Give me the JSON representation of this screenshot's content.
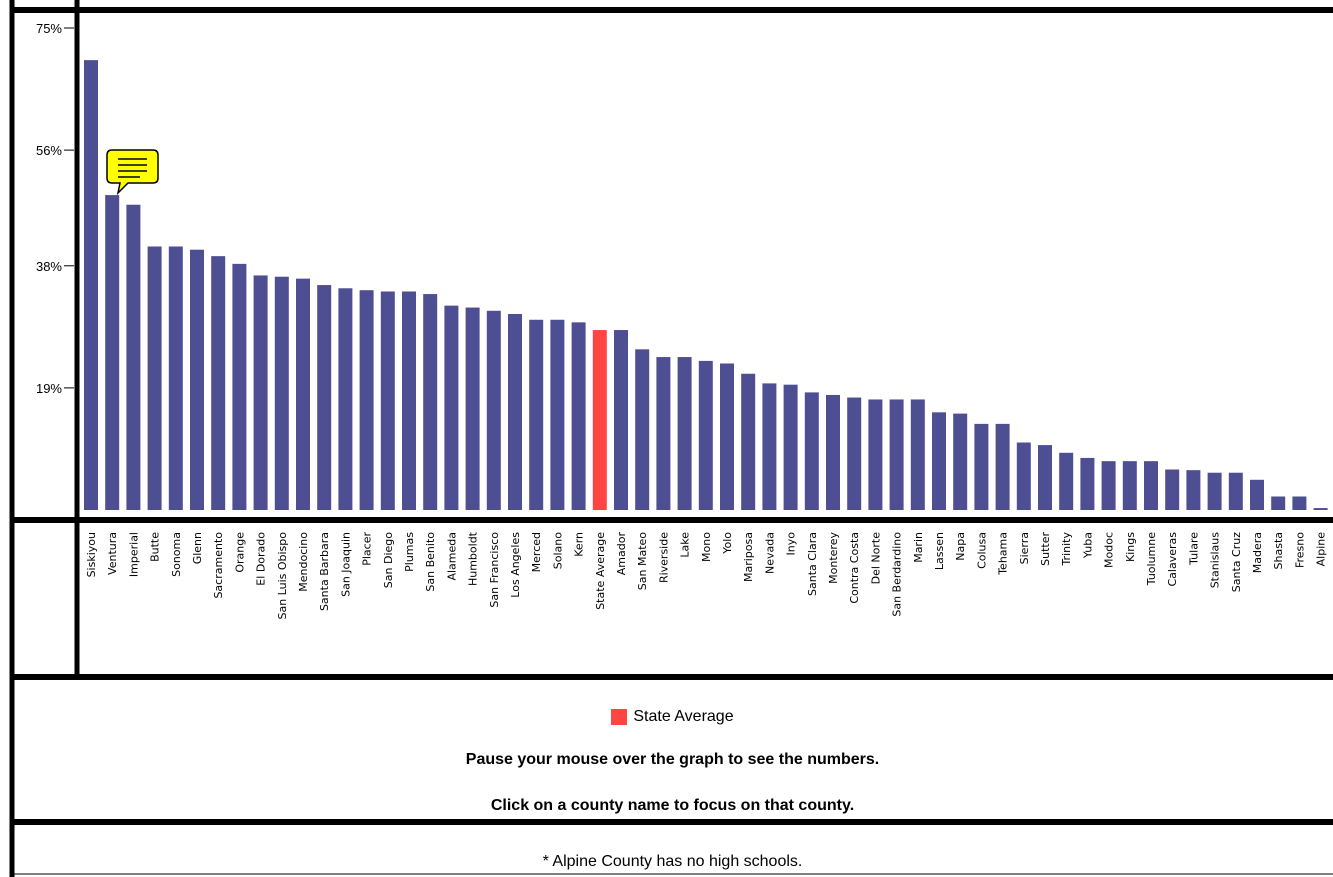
{
  "chart_data": {
    "type": "bar",
    "yticks": [
      "75%",
      "56%",
      "38%",
      "19%"
    ],
    "ytick_values": [
      75,
      56,
      38,
      19
    ],
    "ylim": [
      0,
      75
    ],
    "grid": false,
    "highlight_category": "State Average",
    "categories": [
      "Siskiyou",
      "Ventura",
      "Imperial",
      "Butte",
      "Sonoma",
      "Glenn",
      "Sacramento",
      "Orange",
      "El Dorado",
      "San Luis Obispo",
      "Mendocino",
      "Santa Barbara",
      "San Joaquin",
      "Placer",
      "San Diego",
      "Plumas",
      "San Benito",
      "Alameda",
      "Humboldt",
      "San Francisco",
      "Los Angeles",
      "Merced",
      "Solano",
      "Kern",
      "State Average",
      "Amador",
      "San Mateo",
      "Riverside",
      "Lake",
      "Mono",
      "Yolo",
      "Mariposa",
      "Nevada",
      "Inyo",
      "Santa Clara",
      "Monterey",
      "Contra Costa",
      "Del Norte",
      "San Berdardino",
      "Marin",
      "Lassen",
      "Napa",
      "Colusa",
      "Tehama",
      "Sierra",
      "Sutter",
      "Trinity",
      "Yuba",
      "Modoc",
      "Kings",
      "Tuolumne",
      "Calaveras",
      "Tulare",
      "Stanislaus",
      "Santa Cruz",
      "Madera",
      "Shasta",
      "Fresno",
      "Alpine"
    ],
    "values": [
      70,
      49,
      47.5,
      41,
      41,
      40.5,
      39.5,
      38.3,
      36.5,
      36.3,
      36,
      35,
      34.5,
      34.2,
      34,
      34,
      33.6,
      31.8,
      31.5,
      31,
      30.5,
      29.6,
      29.6,
      29.2,
      28,
      28,
      25,
      23.8,
      23.8,
      23.2,
      22.8,
      21.2,
      19.7,
      19.5,
      18.3,
      17.9,
      17.5,
      17.2,
      17.2,
      17.2,
      15.2,
      15,
      13.4,
      13.4,
      10.5,
      10.1,
      8.9,
      8.1,
      7.6,
      7.6,
      7.6,
      6.3,
      6.2,
      5.8,
      5.8,
      4.7,
      2.1,
      2.1,
      0.3
    ],
    "colors": {
      "bar": "#4e4e93",
      "highlight": "#ff4444"
    },
    "legend": [
      {
        "label": "State Average",
        "color": "#ff4444"
      }
    ]
  },
  "hint_line_1": "Pause your mouse over the graph to see the numbers.",
  "hint_line_2": "Click on a county name to focus on that county.",
  "footnote": "* Alpine County has no high schools.",
  "tooltip_icon": "speech-bubble-icon"
}
